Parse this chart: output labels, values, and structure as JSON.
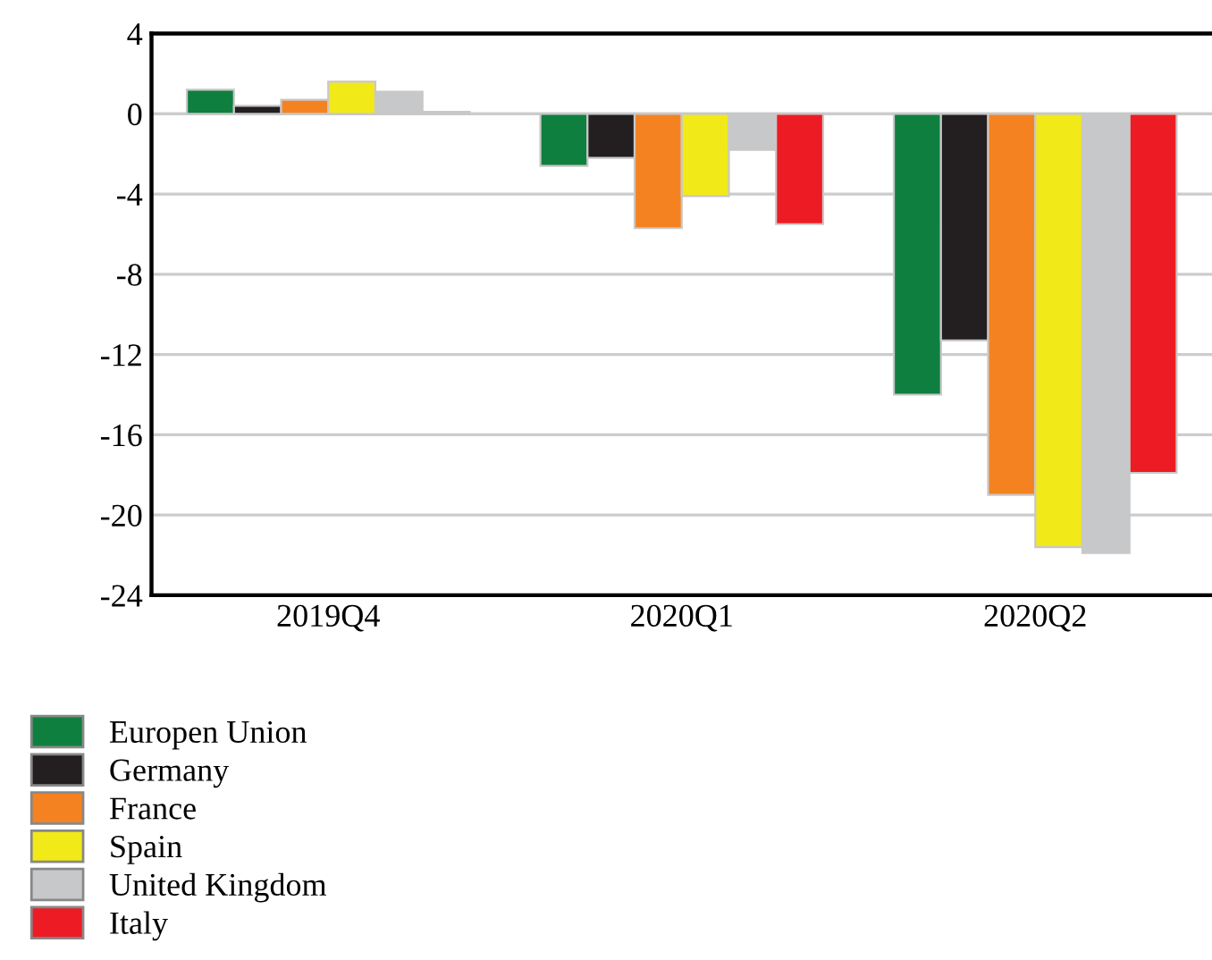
{
  "chart_data": {
    "type": "bar",
    "categories": [
      "2019Q4",
      "2020Q1",
      "2020Q2"
    ],
    "series": [
      {
        "name": "Europen Union",
        "color": "#0f7f3f",
        "values": [
          1.2,
          -2.6,
          -14.0
        ]
      },
      {
        "name": "Germany",
        "color": "#231f20",
        "values": [
          0.4,
          -2.2,
          -11.3
        ]
      },
      {
        "name": "France",
        "color": "#f58220",
        "values": [
          0.7,
          -5.7,
          -19.0
        ]
      },
      {
        "name": "Spain",
        "color": "#f2e918",
        "values": [
          1.6,
          -4.1,
          -21.6
        ]
      },
      {
        "name": "United Kingdom",
        "color": "#c7c8ca",
        "values": [
          1.1,
          -1.8,
          -21.9
        ]
      },
      {
        "name": "Italy",
        "color": "#ed1c24",
        "values": [
          0.1,
          -5.5,
          -17.9
        ]
      }
    ],
    "ylim": [
      -24,
      4
    ],
    "yticks": [
      -24,
      -20,
      -16,
      -12,
      -8,
      -4,
      0,
      4
    ],
    "grid": "y",
    "legend": "bottom left"
  }
}
